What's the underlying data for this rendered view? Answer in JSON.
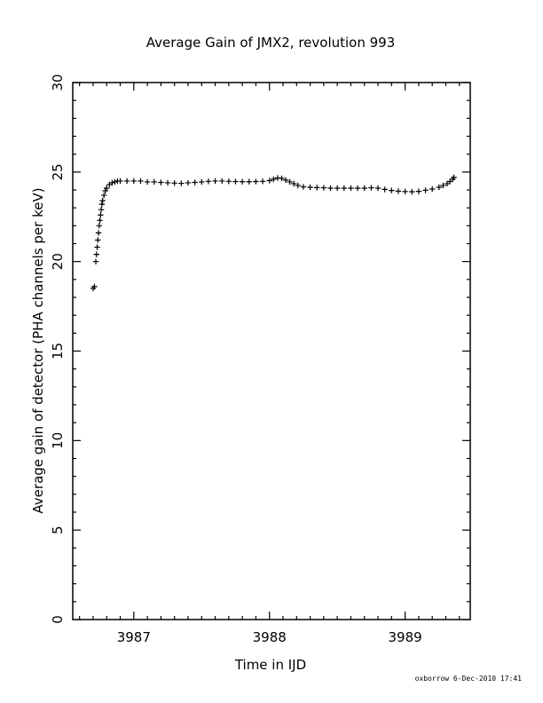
{
  "chart_data": {
    "type": "scatter",
    "title": "Average Gain of JMX2, revolution 993",
    "xlabel": "Time in IJD",
    "ylabel": "Average gain of detector (PHA channels per keV)",
    "xlim": [
      3986.55,
      3989.48
    ],
    "ylim": [
      0,
      30
    ],
    "x_ticks": [
      3987,
      3988,
      3989
    ],
    "y_ticks": [
      0,
      5,
      10,
      15,
      20,
      25,
      30
    ],
    "marker": "plus",
    "grid": false,
    "series": [
      {
        "points": [
          [
            3986.7,
            18.5
          ],
          [
            3986.71,
            18.6
          ],
          [
            3986.72,
            20.0
          ],
          [
            3986.725,
            20.4
          ],
          [
            3986.73,
            20.8
          ],
          [
            3986.735,
            21.2
          ],
          [
            3986.74,
            21.6
          ],
          [
            3986.745,
            22.0
          ],
          [
            3986.75,
            22.3
          ],
          [
            3986.755,
            22.6
          ],
          [
            3986.76,
            22.9
          ],
          [
            3986.765,
            23.2
          ],
          [
            3986.77,
            23.4
          ],
          [
            3986.78,
            23.7
          ],
          [
            3986.79,
            23.95
          ],
          [
            3986.8,
            24.1
          ],
          [
            3986.82,
            24.3
          ],
          [
            3986.84,
            24.4
          ],
          [
            3986.86,
            24.45
          ],
          [
            3986.88,
            24.5
          ],
          [
            3986.9,
            24.5
          ],
          [
            3986.95,
            24.5
          ],
          [
            3987.0,
            24.5
          ],
          [
            3987.05,
            24.5
          ],
          [
            3987.1,
            24.45
          ],
          [
            3987.15,
            24.45
          ],
          [
            3987.2,
            24.42
          ],
          [
            3987.25,
            24.4
          ],
          [
            3987.3,
            24.38
          ],
          [
            3987.35,
            24.37
          ],
          [
            3987.4,
            24.4
          ],
          [
            3987.45,
            24.42
          ],
          [
            3987.5,
            24.45
          ],
          [
            3987.55,
            24.48
          ],
          [
            3987.6,
            24.5
          ],
          [
            3987.65,
            24.5
          ],
          [
            3987.7,
            24.48
          ],
          [
            3987.75,
            24.47
          ],
          [
            3987.8,
            24.46
          ],
          [
            3987.85,
            24.46
          ],
          [
            3987.9,
            24.47
          ],
          [
            3987.95,
            24.48
          ],
          [
            3988.0,
            24.52
          ],
          [
            3988.03,
            24.6
          ],
          [
            3988.06,
            24.67
          ],
          [
            3988.09,
            24.65
          ],
          [
            3988.12,
            24.55
          ],
          [
            3988.15,
            24.45
          ],
          [
            3988.18,
            24.35
          ],
          [
            3988.21,
            24.25
          ],
          [
            3988.25,
            24.17
          ],
          [
            3988.3,
            24.15
          ],
          [
            3988.35,
            24.13
          ],
          [
            3988.4,
            24.12
          ],
          [
            3988.45,
            24.1
          ],
          [
            3988.5,
            24.1
          ],
          [
            3988.55,
            24.1
          ],
          [
            3988.6,
            24.1
          ],
          [
            3988.65,
            24.1
          ],
          [
            3988.7,
            24.1
          ],
          [
            3988.75,
            24.12
          ],
          [
            3988.8,
            24.1
          ],
          [
            3988.85,
            24.03
          ],
          [
            3988.9,
            23.97
          ],
          [
            3988.95,
            23.93
          ],
          [
            3989.0,
            23.91
          ],
          [
            3989.05,
            23.9
          ],
          [
            3989.1,
            23.92
          ],
          [
            3989.15,
            23.98
          ],
          [
            3989.2,
            24.05
          ],
          [
            3989.25,
            24.15
          ],
          [
            3989.28,
            24.25
          ],
          [
            3989.31,
            24.35
          ],
          [
            3989.33,
            24.47
          ],
          [
            3989.35,
            24.6
          ],
          [
            3989.36,
            24.7
          ]
        ]
      }
    ]
  },
  "footer": "oxborrow   6-Dec-2010 17:41"
}
